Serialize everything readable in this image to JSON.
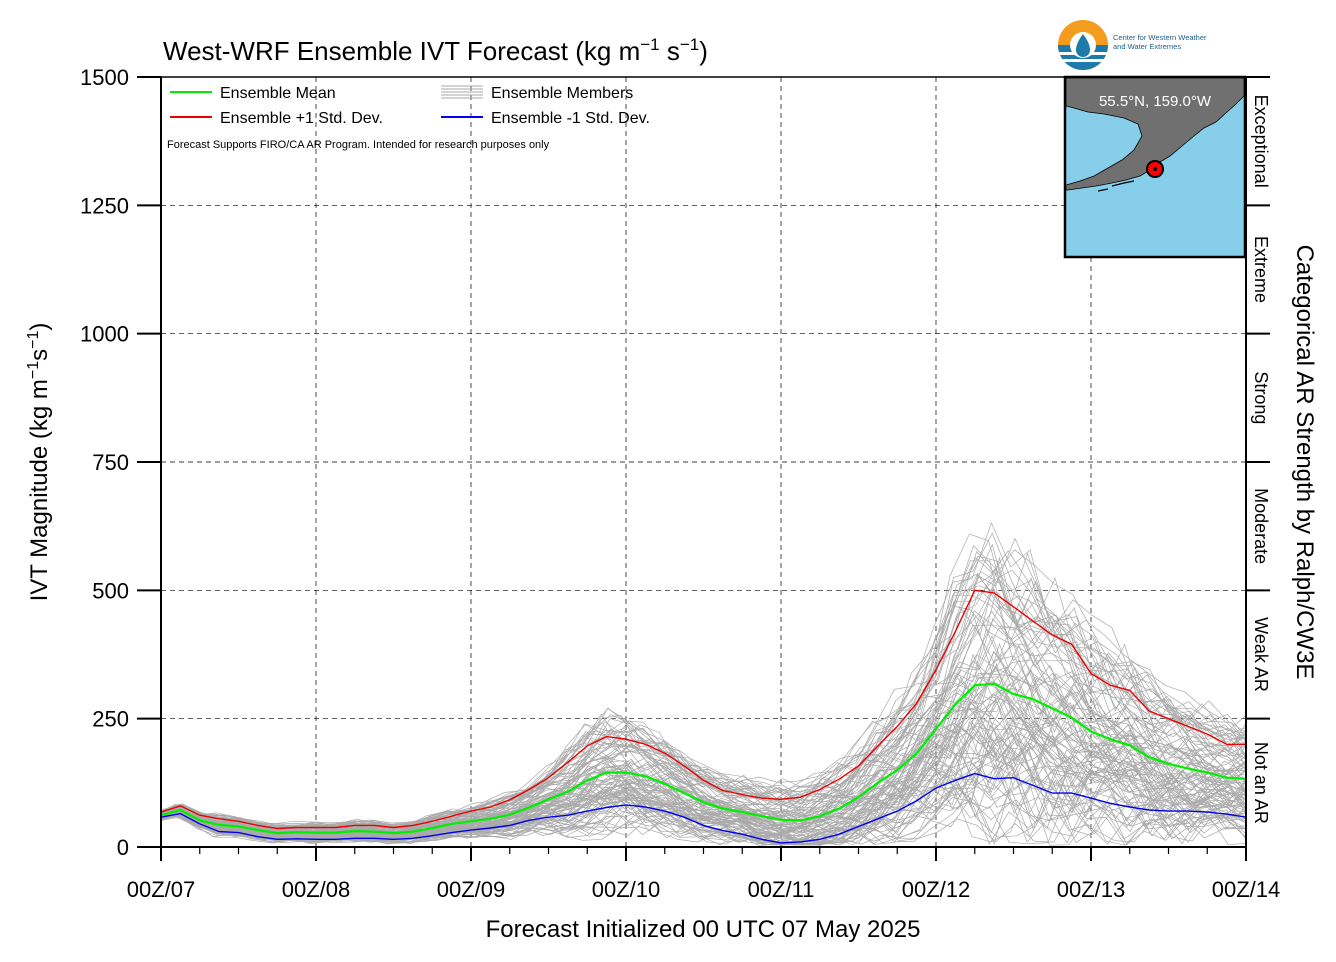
{
  "chart_data": {
    "type": "line",
    "title": "West-WRF Ensemble IVT Forecast (kg m",
    "title_sup1": "−1",
    "title_mid": " s",
    "title_sup2": "−1",
    "title_end": ")",
    "xlabel": "Forecast Initialized 00 UTC 07 May 2025",
    "ylabel_main": "IVT Magnitude (kg m",
    "ylabel_sup1": "−1",
    "ylabel_mid": "s",
    "ylabel_sup2": "−1",
    "ylabel_end": ")",
    "right_label": "Categorical AR Strength by Ralph/CW3E",
    "xlim": [
      0,
      168
    ],
    "ylim": [
      0,
      1500
    ],
    "x_ticks": [
      {
        "hour": 0,
        "label": "00Z/07"
      },
      {
        "hour": 24,
        "label": "00Z/08"
      },
      {
        "hour": 48,
        "label": "00Z/09"
      },
      {
        "hour": 72,
        "label": "00Z/10"
      },
      {
        "hour": 96,
        "label": "00Z/11"
      },
      {
        "hour": 120,
        "label": "00Z/12"
      },
      {
        "hour": 144,
        "label": "00Z/13"
      },
      {
        "hour": 168,
        "label": "00Z/14"
      }
    ],
    "y_ticks": [
      0,
      250,
      500,
      750,
      1000,
      1250,
      1500
    ],
    "grid": true,
    "categories": [
      {
        "label": "Not an AR",
        "min": 0,
        "max": 250
      },
      {
        "label": "Weak AR",
        "min": 250,
        "max": 500
      },
      {
        "label": "Moderate",
        "min": 500,
        "max": 750
      },
      {
        "label": "Strong",
        "min": 750,
        "max": 1000
      },
      {
        "label": "Extreme",
        "min": 1000,
        "max": 1250
      },
      {
        "label": "Exceptional",
        "min": 1250,
        "max": 1500
      }
    ],
    "legend": {
      "placement": "top-left",
      "entries": [
        {
          "label": "Ensemble Mean",
          "color": "#00ee00"
        },
        {
          "label": "Ensemble +1 Std. Dev.",
          "color": "#ee0000"
        },
        {
          "label": "Ensemble Members",
          "color": "#aaaaaa"
        },
        {
          "label": "Ensemble -1 Std. Dev.",
          "color": "#0000ee"
        }
      ],
      "note": "Forecast Supports FIRO/CA AR Program. Intended for research purposes only"
    },
    "series": [
      {
        "name": "Ensemble Mean",
        "color": "#00ee00",
        "x": [
          0,
          3,
          6,
          9,
          12,
          15,
          18,
          21,
          24,
          27,
          30,
          33,
          36,
          39,
          42,
          45,
          48,
          51,
          54,
          57,
          60,
          63,
          66,
          69,
          72,
          75,
          78,
          81,
          84,
          87,
          90,
          93,
          96,
          99,
          102,
          105,
          108,
          111,
          114,
          117,
          120,
          123,
          126,
          129,
          132,
          135,
          138,
          141,
          144,
          147,
          150,
          153,
          156,
          159,
          162,
          165,
          168
        ],
        "values": [
          62,
          72,
          52,
          43,
          40,
          33,
          27,
          29,
          28,
          28,
          31,
          30,
          27,
          30,
          37,
          45,
          50,
          55,
          63,
          77,
          93,
          108,
          130,
          145,
          145,
          138,
          123,
          105,
          87,
          75,
          68,
          60,
          53,
          52,
          60,
          75,
          97,
          125,
          150,
          182,
          230,
          278,
          315,
          318,
          298,
          288,
          270,
          252,
          225,
          210,
          198,
          175,
          162,
          153,
          145,
          135,
          133
        ]
      },
      {
        "name": "Ensemble +1 Std. Dev.",
        "color": "#ee0000",
        "x": [
          0,
          3,
          6,
          9,
          12,
          15,
          18,
          21,
          24,
          27,
          30,
          33,
          36,
          39,
          42,
          45,
          48,
          51,
          54,
          57,
          60,
          63,
          66,
          69,
          72,
          75,
          78,
          81,
          84,
          87,
          90,
          93,
          96,
          99,
          102,
          105,
          108,
          111,
          114,
          117,
          120,
          123,
          126,
          129,
          132,
          135,
          138,
          141,
          144,
          147,
          150,
          153,
          156,
          159,
          162,
          165,
          168
        ],
        "values": [
          68,
          80,
          62,
          55,
          50,
          42,
          36,
          38,
          38,
          38,
          42,
          42,
          38,
          42,
          50,
          60,
          70,
          78,
          92,
          112,
          135,
          165,
          197,
          215,
          210,
          200,
          183,
          158,
          130,
          110,
          102,
          95,
          93,
          97,
          112,
          132,
          158,
          197,
          235,
          280,
          345,
          420,
          500,
          495,
          468,
          440,
          413,
          395,
          338,
          315,
          305,
          265,
          250,
          235,
          220,
          200,
          200
        ]
      },
      {
        "name": "Ensemble -1 Std. Dev.",
        "color": "#0000ee",
        "x": [
          0,
          3,
          6,
          9,
          12,
          15,
          18,
          21,
          24,
          27,
          30,
          33,
          36,
          39,
          42,
          45,
          48,
          51,
          54,
          57,
          60,
          63,
          66,
          69,
          72,
          75,
          78,
          81,
          84,
          87,
          90,
          93,
          96,
          99,
          102,
          105,
          108,
          111,
          114,
          117,
          120,
          123,
          126,
          129,
          132,
          135,
          138,
          141,
          144,
          147,
          150,
          153,
          156,
          159,
          162,
          165,
          168
        ],
        "values": [
          58,
          65,
          45,
          30,
          28,
          20,
          15,
          16,
          15,
          15,
          17,
          17,
          15,
          17,
          22,
          28,
          33,
          37,
          42,
          52,
          58,
          62,
          70,
          77,
          82,
          78,
          70,
          58,
          42,
          32,
          25,
          15,
          8,
          10,
          15,
          25,
          40,
          55,
          70,
          90,
          115,
          130,
          143,
          133,
          135,
          120,
          105,
          105,
          95,
          85,
          78,
          72,
          70,
          70,
          68,
          64,
          58
        ]
      }
    ],
    "members_note": "Ensemble Members",
    "inset": {
      "label": "55.5°N, 159.0°W",
      "ocean_color": "#87ceeb",
      "land_color": "#707070",
      "marker_color": "#ff0000"
    },
    "logo": {
      "line1": "Center for Western Weather",
      "line2": "and Water Extremes"
    }
  }
}
